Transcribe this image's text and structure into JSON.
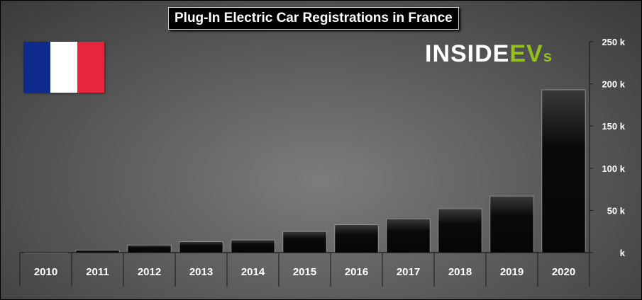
{
  "title": "Plug-In Electric Car Registrations in France",
  "logo": {
    "main": "INSIDE",
    "ev": "EV",
    "s": "s"
  },
  "flag": {
    "colors": [
      "#0d2a8c",
      "#ffffff",
      "#e8263b"
    ]
  },
  "colors": {
    "bar_top": "#3a3a3a",
    "bar_bottom": "#050505",
    "axis": "#1a1a1a"
  },
  "chart_data": {
    "type": "bar",
    "title": "Plug-In Electric Car Registrations in France",
    "categories": [
      "2010",
      "2011",
      "2012",
      "2013",
      "2014",
      "2015",
      "2016",
      "2017",
      "2018",
      "2019",
      "2020"
    ],
    "values": [
      200,
      3000,
      9000,
      13000,
      15000,
      25000,
      33000,
      40000,
      52000,
      67000,
      193000
    ],
    "ylim": [
      0,
      250000
    ],
    "yticks": [
      0,
      50000,
      100000,
      150000,
      200000,
      250000
    ],
    "ytick_labels": [
      "k",
      "50 k",
      "100 k",
      "150 k",
      "200 k",
      "250 k"
    ],
    "y_axis_position": "right",
    "grid": false,
    "legend": "none"
  }
}
